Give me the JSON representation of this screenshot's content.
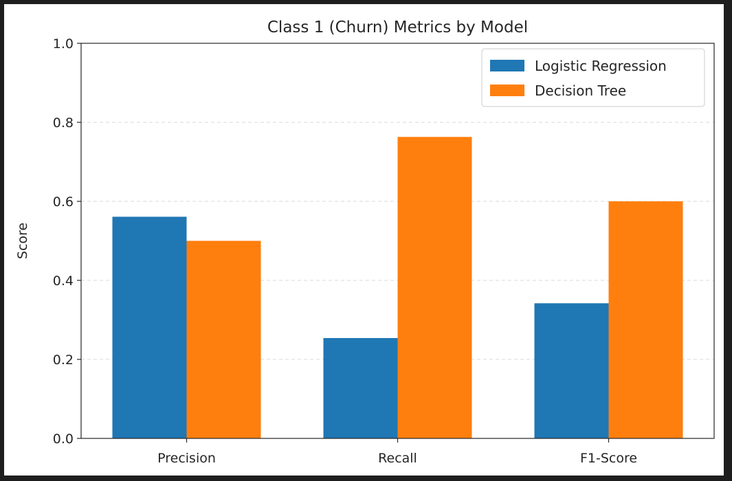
{
  "chart_data": {
    "type": "bar",
    "title": "Class 1 (Churn) Metrics by Model",
    "xlabel": "",
    "ylabel": "Score",
    "categories": [
      "Precision",
      "Recall",
      "F1-Score"
    ],
    "series": [
      {
        "name": "Logistic Regression",
        "color": "#1f77b4",
        "values": [
          0.561,
          0.254,
          0.342
        ]
      },
      {
        "name": "Decision Tree",
        "color": "#ff7f0e",
        "values": [
          0.5,
          0.763,
          0.6
        ]
      }
    ],
    "ylim": [
      0,
      1.0
    ],
    "yticks": [
      "0.0",
      "0.2",
      "0.4",
      "0.6",
      "0.8",
      "1.0"
    ],
    "grid": "y, dashed",
    "legend_position": "top-right"
  }
}
